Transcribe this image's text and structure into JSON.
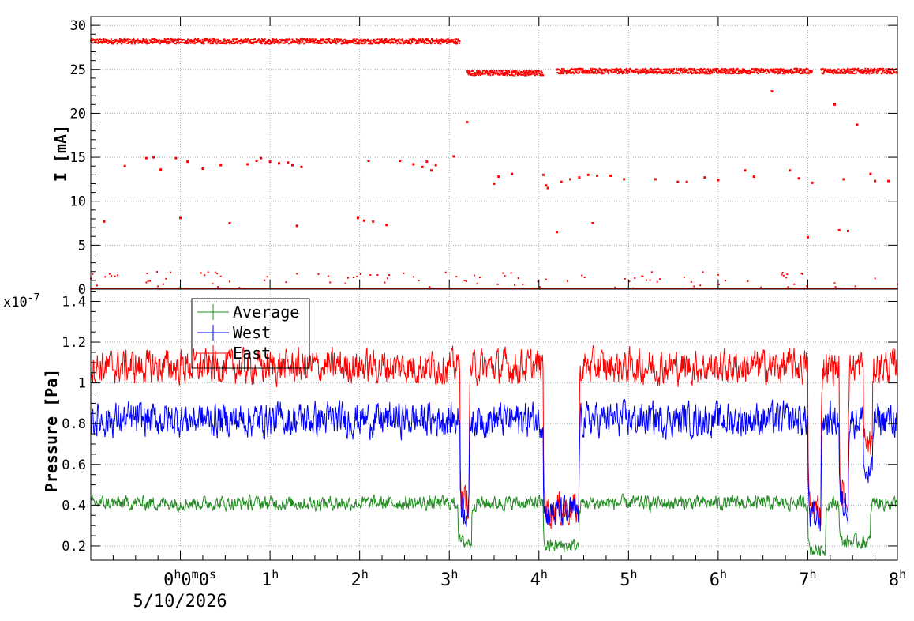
{
  "chart_data": [
    {
      "type": "scatter",
      "ylabel": "I [mA]",
      "ylim": [
        0,
        31
      ],
      "yticks": [
        "0",
        "5",
        "10",
        "15",
        "20",
        "25",
        "30"
      ],
      "xlim": [
        -1,
        8
      ],
      "grid": true,
      "series": [
        {
          "color": "#ff0000",
          "segments": [
            {
              "x_start": -1.0,
              "x_end": 3.12,
              "y": 28.2
            },
            {
              "x_start": 3.2,
              "x_end": 4.05,
              "y": 24.6
            },
            {
              "x_start": 4.2,
              "x_end": 7.05,
              "y": 24.8
            },
            {
              "x_start": 7.15,
              "x_end": 8.0,
              "y": 24.8
            }
          ],
          "outliers": [
            [
              -0.85,
              7.7
            ],
            [
              -0.62,
              14.0
            ],
            [
              -0.38,
              14.9
            ],
            [
              -0.3,
              15.0
            ],
            [
              -0.22,
              13.6
            ],
            [
              -0.05,
              14.9
            ],
            [
              0.0,
              8.1
            ],
            [
              0.08,
              14.5
            ],
            [
              0.25,
              13.7
            ],
            [
              0.45,
              14.1
            ],
            [
              0.55,
              7.5
            ],
            [
              0.75,
              14.2
            ],
            [
              0.85,
              14.6
            ],
            [
              0.9,
              14.9
            ],
            [
              1.0,
              14.5
            ],
            [
              1.1,
              14.3
            ],
            [
              1.2,
              14.4
            ],
            [
              1.25,
              14.1
            ],
            [
              1.3,
              7.2
            ],
            [
              1.35,
              13.9
            ],
            [
              1.98,
              8.1
            ],
            [
              2.05,
              7.8
            ],
            [
              2.1,
              14.6
            ],
            [
              2.15,
              7.7
            ],
            [
              2.3,
              7.3
            ],
            [
              2.45,
              14.6
            ],
            [
              2.6,
              14.2
            ],
            [
              2.7,
              13.9
            ],
            [
              2.75,
              14.5
            ],
            [
              2.8,
              13.5
            ],
            [
              2.85,
              14.1
            ],
            [
              3.05,
              15.1
            ],
            [
              3.2,
              19.0
            ],
            [
              3.5,
              12.0
            ],
            [
              3.55,
              12.8
            ],
            [
              3.7,
              13.1
            ],
            [
              4.05,
              13.0
            ],
            [
              4.08,
              11.8
            ],
            [
              4.1,
              11.5
            ],
            [
              4.2,
              6.5
            ],
            [
              4.25,
              12.2
            ],
            [
              4.35,
              12.5
            ],
            [
              4.45,
              12.7
            ],
            [
              4.55,
              13.0
            ],
            [
              4.6,
              7.5
            ],
            [
              4.65,
              12.9
            ],
            [
              4.8,
              12.9
            ],
            [
              4.95,
              12.5
            ],
            [
              5.3,
              12.5
            ],
            [
              5.55,
              12.2
            ],
            [
              5.65,
              12.2
            ],
            [
              5.85,
              12.7
            ],
            [
              6.0,
              12.4
            ],
            [
              6.3,
              13.5
            ],
            [
              6.4,
              12.8
            ],
            [
              6.6,
              22.5
            ],
            [
              6.8,
              13.5
            ],
            [
              6.9,
              12.6
            ],
            [
              7.0,
              5.9
            ],
            [
              7.05,
              12.1
            ],
            [
              7.3,
              21.0
            ],
            [
              7.35,
              6.7
            ],
            [
              7.4,
              12.5
            ],
            [
              7.45,
              6.6
            ],
            [
              7.55,
              18.7
            ],
            [
              7.7,
              13.1
            ],
            [
              7.75,
              12.3
            ],
            [
              7.9,
              12.3
            ]
          ],
          "zero_band": {
            "x_start": -1.0,
            "x_end": 8.0,
            "y_min": 0,
            "y_max": 2
          }
        }
      ]
    },
    {
      "type": "line",
      "ylabel": "Pressure [Pa]",
      "y_exponent": "x10",
      "y_exponent_power": "-7",
      "ylim": [
        0.13,
        1.46
      ],
      "yticks": [
        "0.2",
        "0.4",
        "0.6",
        "0.8",
        "1",
        "1.2",
        "1.4"
      ],
      "xlim": [
        -1,
        8
      ],
      "grid": true,
      "legend": {
        "position": "top-left",
        "entries": [
          "Average",
          "West",
          "East"
        ]
      },
      "series": [
        {
          "name": "Average",
          "color": "#228b22",
          "baseline": 0.41,
          "noise": 0.05,
          "dips": [
            [
              3.1,
              3.25,
              0.22
            ],
            [
              4.05,
              4.45,
              0.2
            ],
            [
              7.0,
              7.2,
              0.18
            ],
            [
              7.35,
              7.7,
              0.22
            ]
          ]
        },
        {
          "name": "West",
          "color": "#0000ff",
          "baseline": 0.82,
          "noise": 0.12,
          "dips": [
            [
              3.12,
              3.22,
              0.38
            ],
            [
              4.05,
              4.45,
              0.36
            ],
            [
              7.0,
              7.15,
              0.34
            ],
            [
              7.35,
              7.45,
              0.4
            ],
            [
              7.62,
              7.72,
              0.55
            ]
          ]
        },
        {
          "name": "East",
          "color": "#ff0000",
          "baseline": 1.08,
          "noise": 0.12,
          "dips": [
            [
              3.12,
              3.22,
              0.42
            ],
            [
              4.05,
              4.45,
              0.38
            ],
            [
              7.0,
              7.15,
              0.38
            ],
            [
              7.35,
              7.45,
              0.45
            ],
            [
              7.62,
              7.72,
              0.7
            ]
          ]
        }
      ]
    }
  ],
  "xaxis": {
    "ticks": [
      {
        "value": 0,
        "text": "0",
        "sup": "h",
        "text2": "0",
        "sup2": "m",
        "text3": "0",
        "sup3": "s"
      },
      {
        "value": 1,
        "text": "1",
        "sup": "h"
      },
      {
        "value": 2,
        "text": "2",
        "sup": "h"
      },
      {
        "value": 3,
        "text": "3",
        "sup": "h"
      },
      {
        "value": 4,
        "text": "4",
        "sup": "h"
      },
      {
        "value": 5,
        "text": "5",
        "sup": "h"
      },
      {
        "value": 6,
        "text": "6",
        "sup": "h"
      },
      {
        "value": 7,
        "text": "7",
        "sup": "h"
      },
      {
        "value": 8,
        "text": "8",
        "sup": "h"
      }
    ],
    "date_label": "5/10/2026"
  }
}
